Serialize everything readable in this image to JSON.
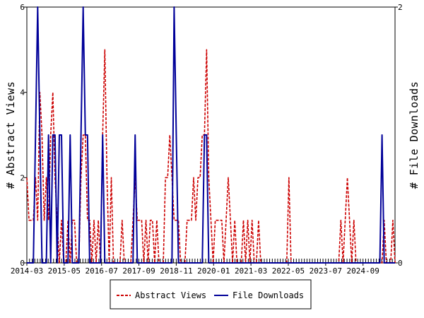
{
  "chart_data": {
    "type": "line",
    "x_start": "2014-03",
    "x_end": "2025-09",
    "x_tick_labels": [
      "2014-03",
      "2015-05",
      "2016-07",
      "2017-09",
      "2018-11",
      "2020-01",
      "2021-03",
      "2022-05",
      "2023-07",
      "2024-09"
    ],
    "ylabel_left": "# Abstract Views",
    "ylabel_right": "# File Downloads",
    "ylim_left": [
      0,
      6
    ],
    "ylim_right": [
      0,
      2
    ],
    "yticks_left": [
      0,
      2,
      4,
      6
    ],
    "yticks_right": [
      0,
      2
    ],
    "grid": false,
    "legend_position": "bottom-center",
    "series": [
      {
        "name": "Abstract Views",
        "axis": "left",
        "color": "#cc0000",
        "style": "dashed",
        "values": [
          2,
          1,
          1,
          1,
          2,
          1,
          4,
          3,
          1,
          2,
          1,
          3,
          4,
          2,
          1,
          0,
          1,
          0,
          0,
          1,
          0,
          1,
          1,
          0,
          0,
          2,
          3,
          3,
          1,
          1,
          0,
          1,
          0,
          1,
          0,
          3,
          5,
          2,
          0,
          2,
          0,
          0,
          0,
          0,
          1,
          0,
          0,
          0,
          0,
          1,
          2,
          1,
          1,
          1,
          0,
          1,
          0,
          1,
          1,
          0,
          1,
          0,
          0,
          0,
          2,
          2,
          3,
          2,
          1,
          1,
          1,
          0,
          0,
          0,
          1,
          1,
          1,
          2,
          1,
          2,
          2,
          3,
          3,
          5,
          2,
          1,
          0,
          1,
          1,
          1,
          1,
          0,
          1,
          2,
          1,
          0,
          1,
          0,
          0,
          0,
          1,
          0,
          1,
          0,
          1,
          0,
          0,
          1,
          0,
          0,
          0,
          0,
          0,
          0,
          0,
          0,
          0,
          0,
          0,
          0,
          0,
          2,
          0,
          0,
          0,
          0,
          0,
          0,
          0,
          0,
          0,
          0,
          0,
          0,
          0,
          0,
          0,
          0,
          0,
          0,
          0,
          0,
          0,
          0,
          0,
          1,
          0,
          1,
          2,
          1,
          0,
          1,
          0,
          0,
          0,
          0,
          0,
          0,
          0,
          0,
          0,
          0,
          0,
          0,
          0,
          1,
          0,
          0,
          0,
          1,
          0
        ]
      },
      {
        "name": "File Downloads",
        "axis": "right",
        "color": "#000099",
        "style": "solid",
        "values": [
          0,
          0,
          0,
          0,
          1,
          2,
          1,
          0,
          0,
          0,
          1,
          0,
          1,
          1,
          0,
          1,
          1,
          0,
          0,
          0,
          1,
          0,
          0,
          0,
          0,
          1,
          2,
          1,
          1,
          0,
          0,
          0,
          0,
          0,
          0,
          1,
          0,
          0,
          0,
          0,
          0,
          0,
          0,
          0,
          0,
          0,
          0,
          0,
          0,
          0,
          1,
          0,
          0,
          0,
          0,
          0,
          0,
          0,
          0,
          0,
          0,
          0,
          0,
          0,
          0,
          0,
          0,
          0,
          2,
          1,
          0,
          0,
          0,
          0,
          0,
          0,
          0,
          0,
          0,
          0,
          0,
          0,
          1,
          1,
          0,
          0,
          0,
          0,
          0,
          0,
          0,
          0,
          0,
          0,
          0,
          0,
          0,
          0,
          0,
          0,
          0,
          0,
          0,
          0,
          0,
          0,
          0,
          0,
          0,
          0,
          0,
          0,
          0,
          0,
          0,
          0,
          0,
          0,
          0,
          0,
          0,
          0,
          0,
          0,
          0,
          0,
          0,
          0,
          0,
          0,
          0,
          0,
          0,
          0,
          0,
          0,
          0,
          0,
          0,
          0,
          0,
          0,
          0,
          0,
          0,
          0,
          0,
          0,
          0,
          0,
          0,
          0,
          0,
          0,
          0,
          0,
          0,
          0,
          0,
          0,
          0,
          0,
          0,
          0,
          1,
          0,
          0,
          0,
          0,
          0,
          0
        ]
      }
    ]
  }
}
